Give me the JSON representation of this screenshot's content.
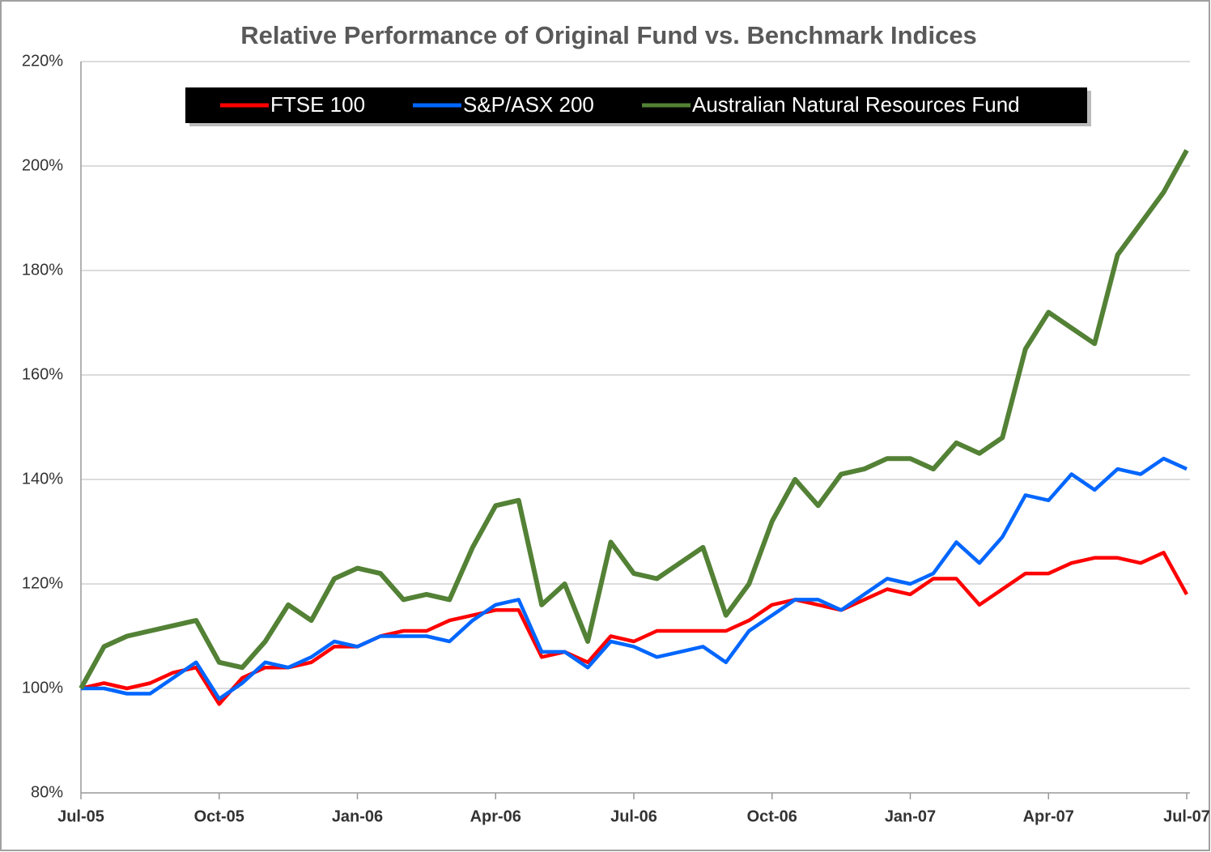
{
  "chart_data": {
    "type": "line",
    "title": "Relative Performance of Original Fund vs. Benchmark Indices",
    "categories": [
      "Jul-05",
      null,
      null,
      null,
      null,
      null,
      "Oct-05",
      null,
      null,
      null,
      null,
      null,
      "Jan-06",
      null,
      null,
      null,
      null,
      null,
      "Apr-06",
      null,
      null,
      null,
      null,
      null,
      "Jul-06",
      null,
      null,
      null,
      null,
      null,
      "Oct-06",
      null,
      null,
      null,
      null,
      null,
      "Jan-07",
      null,
      null,
      null,
      null,
      null,
      "Apr-07",
      null,
      null,
      null,
      null,
      null,
      "Jul-07"
    ],
    "series": [
      {
        "name": "FTSE 100",
        "color": "#ff0000",
        "values": [
          100,
          101,
          100,
          101,
          103,
          104,
          97,
          102,
          104,
          104,
          105,
          108,
          108,
          110,
          111,
          111,
          113,
          114,
          115,
          115,
          106,
          107,
          105,
          110,
          109,
          111,
          111,
          111,
          111,
          113,
          116,
          117,
          116,
          115,
          117,
          119,
          118,
          121,
          121,
          116,
          119,
          122,
          122,
          124,
          125,
          125,
          124,
          126,
          118
        ]
      },
      {
        "name": "S&P/ASX 200",
        "color": "#0066ff",
        "values": [
          100,
          100,
          99,
          99,
          102,
          105,
          98,
          101,
          105,
          104,
          106,
          109,
          108,
          110,
          110,
          110,
          109,
          113,
          116,
          117,
          107,
          107,
          104,
          109,
          108,
          106,
          107,
          108,
          105,
          111,
          114,
          117,
          117,
          115,
          118,
          121,
          120,
          122,
          128,
          124,
          129,
          137,
          136,
          141,
          138,
          142,
          141,
          144,
          142
        ]
      },
      {
        "name": "Australian Natural Resources Fund",
        "color": "#538135",
        "values": [
          100,
          108,
          110,
          111,
          112,
          113,
          105,
          104,
          109,
          116,
          113,
          121,
          123,
          122,
          117,
          118,
          117,
          127,
          135,
          136,
          116,
          120,
          109,
          128,
          122,
          121,
          124,
          127,
          114,
          120,
          132,
          140,
          135,
          141,
          142,
          144,
          144,
          142,
          147,
          145,
          148,
          165,
          172,
          169,
          166,
          183,
          189,
          195,
          203
        ]
      }
    ],
    "ylim": [
      80,
      220
    ],
    "yticks": [
      {
        "value": 80,
        "label": "80%"
      },
      {
        "value": 100,
        "label": "100%"
      },
      {
        "value": 120,
        "label": "120%"
      },
      {
        "value": 140,
        "label": "140%"
      },
      {
        "value": 160,
        "label": "160%"
      },
      {
        "value": 180,
        "label": "180%"
      },
      {
        "value": 200,
        "label": "200%"
      },
      {
        "value": 220,
        "label": "220%"
      }
    ],
    "grid": true,
    "legend": "top"
  }
}
